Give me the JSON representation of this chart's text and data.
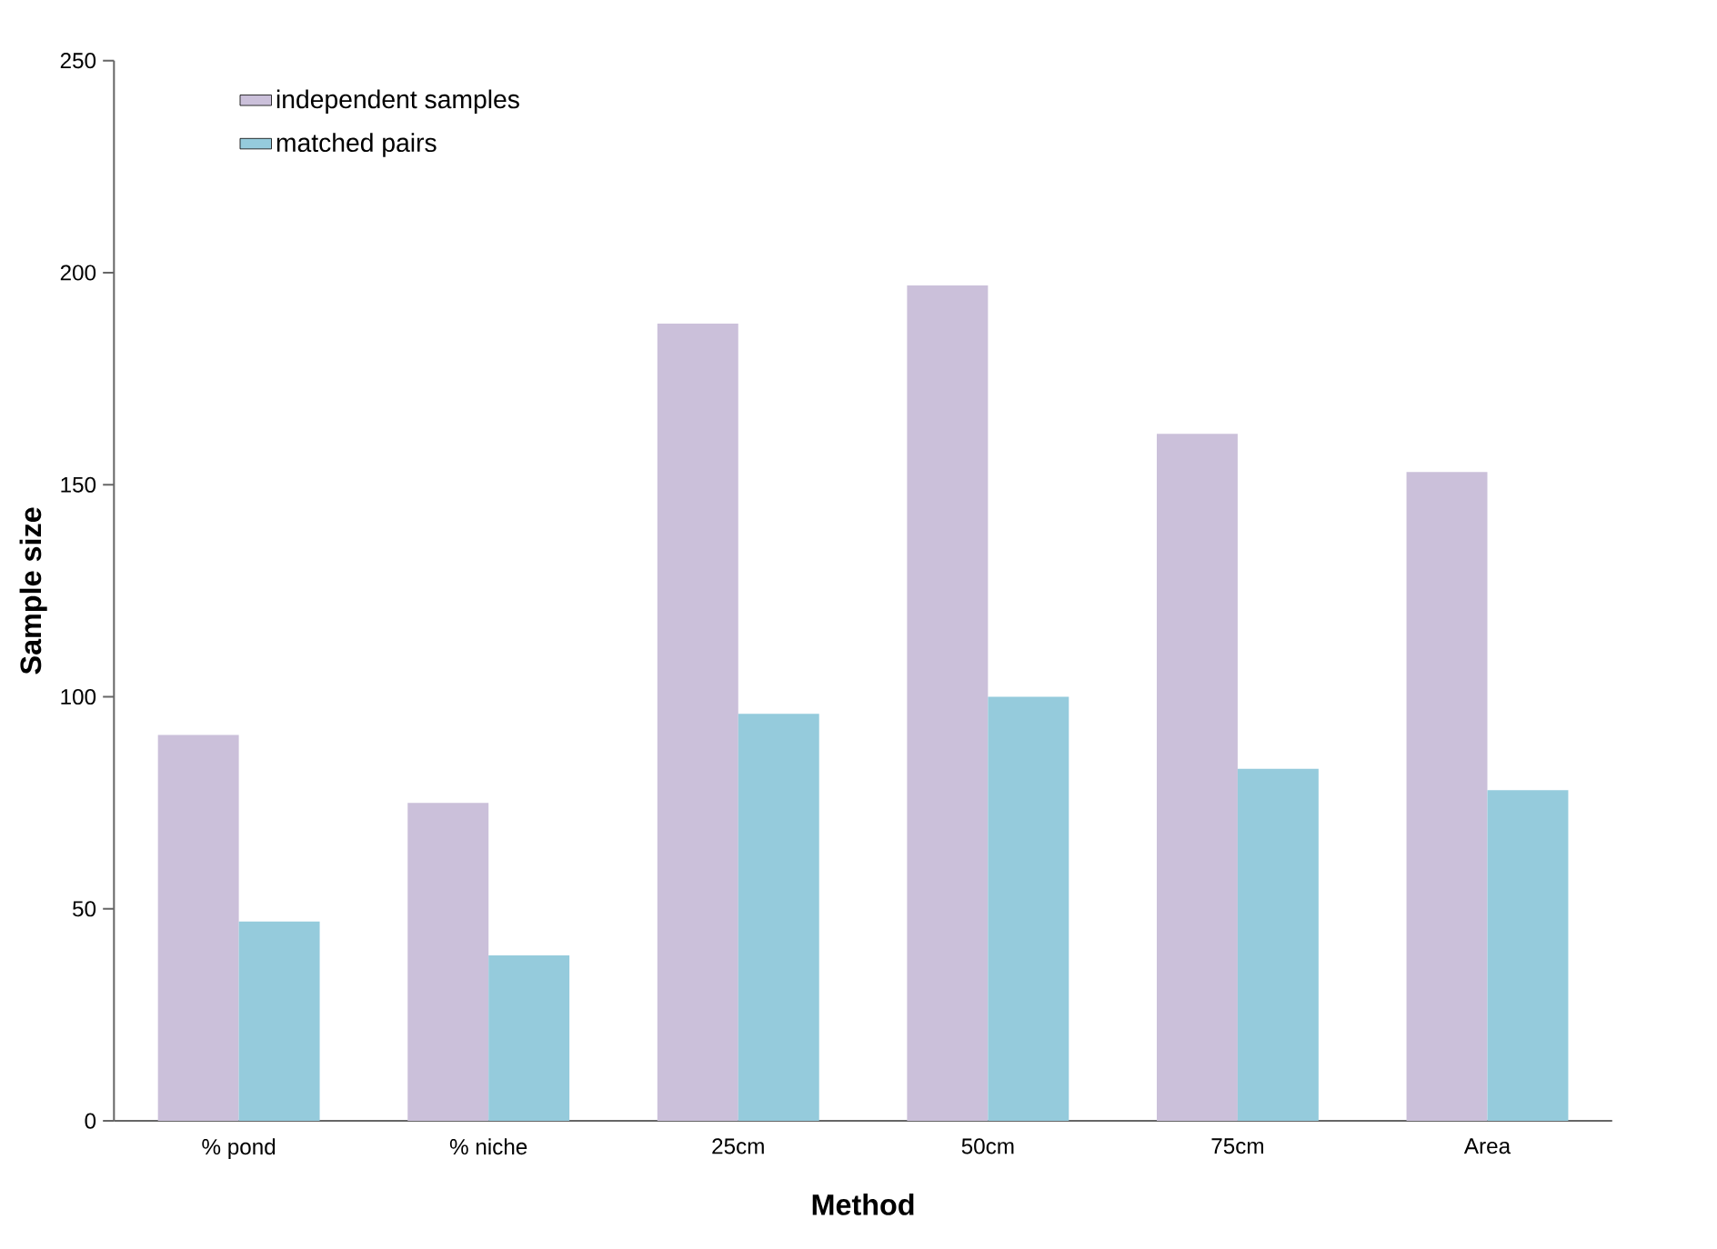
{
  "chart_data": {
    "type": "bar",
    "xlabel": "Method",
    "ylabel": "Sample size",
    "categories": [
      "% pond",
      "% niche",
      "25cm",
      "50cm",
      "75cm",
      "Area"
    ],
    "series": [
      {
        "name": "independent samples",
        "color": "#cbc0da",
        "values": [
          91,
          75,
          188,
          197,
          162,
          153
        ]
      },
      {
        "name": "matched pairs",
        "color": "#95cbdc",
        "values": [
          47,
          39,
          96,
          100,
          83,
          78
        ]
      }
    ],
    "ylim": [
      0,
      250
    ],
    "yticks": [
      0,
      50,
      100,
      150,
      200,
      250
    ],
    "grid": false,
    "legend": "top left"
  }
}
